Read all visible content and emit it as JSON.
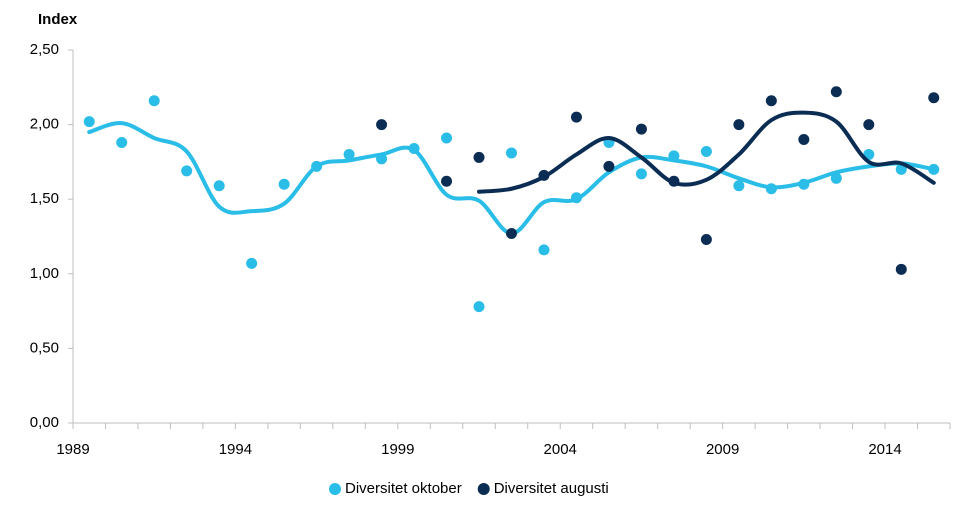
{
  "chart_data": {
    "type": "scatter",
    "y_label": "Index",
    "categories": [
      "1989",
      null,
      null,
      null,
      null,
      "1994",
      null,
      null,
      null,
      null,
      "1999",
      null,
      null,
      null,
      null,
      "2004",
      null,
      null,
      null,
      null,
      "2009",
      null,
      null,
      null,
      null,
      "2014",
      null
    ],
    "series": [
      {
        "name": "Diversitet oktober",
        "color": "#29bde8",
        "values": [
          2.02,
          1.88,
          2.16,
          1.69,
          1.59,
          1.07,
          1.6,
          1.72,
          1.8,
          1.77,
          1.84,
          1.91,
          0.78,
          1.81,
          1.16,
          1.51,
          1.88,
          1.67,
          1.79,
          1.82,
          1.59,
          1.57,
          1.6,
          1.64,
          1.8,
          1.7,
          1.7
        ],
        "trend": [
          1.95,
          2.01,
          1.91,
          1.82,
          1.45,
          1.42,
          1.47,
          1.72,
          1.76,
          1.8,
          1.83,
          1.53,
          1.49,
          1.27,
          1.48,
          1.5,
          1.68,
          1.78,
          1.76,
          1.72,
          1.64,
          1.58,
          1.61,
          1.68,
          1.72,
          1.74,
          1.7
        ]
      },
      {
        "name": "Diversitet augusti",
        "color": "#0b2d54",
        "values": [
          null,
          null,
          null,
          null,
          null,
          null,
          null,
          null,
          null,
          2.0,
          null,
          1.62,
          1.78,
          1.27,
          1.66,
          2.05,
          1.72,
          1.97,
          1.62,
          1.23,
          2.0,
          2.16,
          1.9,
          2.22,
          2.0,
          1.03,
          2.18
        ],
        "trend": [
          null,
          null,
          null,
          null,
          null,
          null,
          null,
          null,
          null,
          null,
          null,
          null,
          1.55,
          1.57,
          1.65,
          1.8,
          1.91,
          1.78,
          1.61,
          1.63,
          1.8,
          2.03,
          2.08,
          2.02,
          1.75,
          1.74,
          1.61
        ]
      }
    ],
    "ylim": [
      0,
      2.5
    ],
    "yticks": [
      {
        "value": 0,
        "label": "0,00"
      },
      {
        "value": 0.5,
        "label": "0,50"
      },
      {
        "value": 1,
        "label": "1,00"
      },
      {
        "value": 1.5,
        "label": "1,50"
      },
      {
        "value": 2,
        "label": "2,00"
      },
      {
        "value": 2.5,
        "label": "2,50"
      }
    ],
    "grid": false,
    "legend": "bottom"
  }
}
